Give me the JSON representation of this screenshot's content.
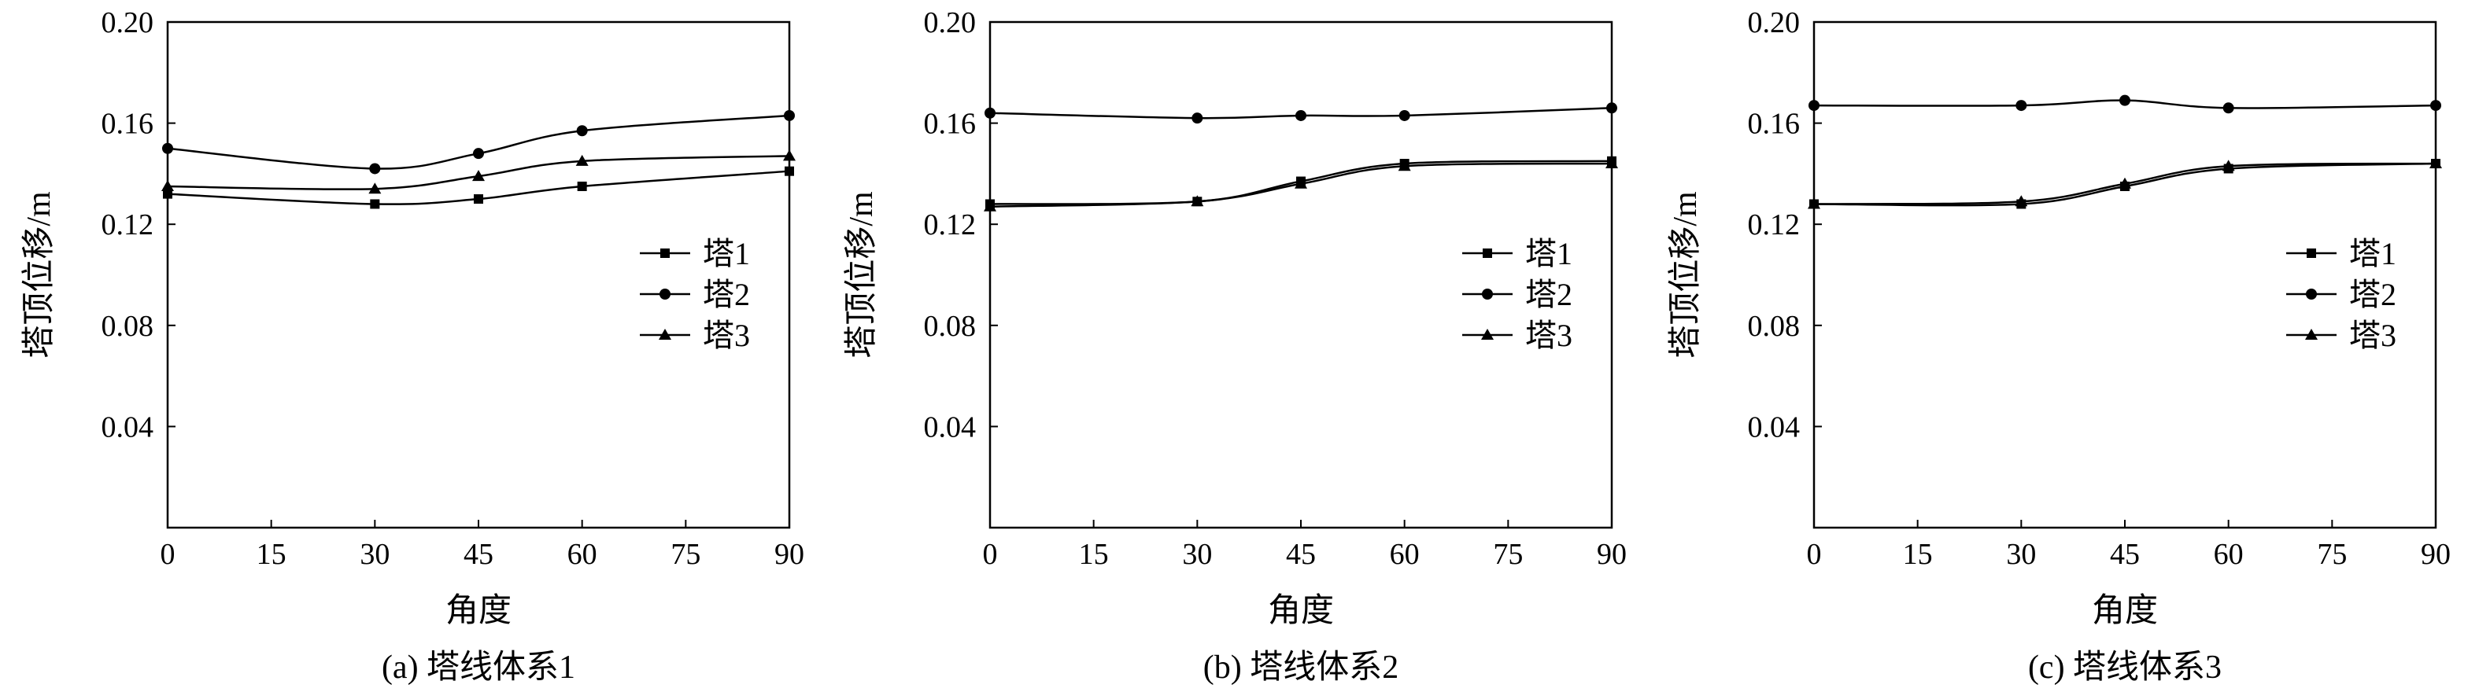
{
  "chart_data": [
    {
      "type": "line",
      "caption": "(a) 塔线体系1",
      "xlabel": "角度",
      "ylabel": "塔顶位移/m",
      "xlim": [
        0,
        90
      ],
      "ylim": [
        0,
        0.2
      ],
      "xticks": [
        "0",
        "15",
        "30",
        "45",
        "60",
        "75",
        "90"
      ],
      "yticks": [
        "0.04",
        "0.08",
        "0.12",
        "0.16",
        "0.20"
      ],
      "legend": "right",
      "x": [
        0,
        30,
        45,
        60,
        90
      ],
      "series": [
        {
          "name": "塔1",
          "marker": "square",
          "values": [
            0.132,
            0.128,
            0.13,
            0.135,
            0.141
          ]
        },
        {
          "name": "塔2",
          "marker": "circle",
          "values": [
            0.15,
            0.142,
            0.148,
            0.157,
            0.163
          ]
        },
        {
          "name": "塔3",
          "marker": "triangle",
          "values": [
            0.135,
            0.134,
            0.139,
            0.145,
            0.147
          ]
        }
      ]
    },
    {
      "type": "line",
      "caption": "(b) 塔线体系2",
      "xlabel": "角度",
      "ylabel": "塔顶位移/m",
      "xlim": [
        0,
        90
      ],
      "ylim": [
        0,
        0.2
      ],
      "xticks": [
        "0",
        "15",
        "30",
        "45",
        "60",
        "75",
        "90"
      ],
      "yticks": [
        "0.04",
        "0.08",
        "0.12",
        "0.16",
        "0.20"
      ],
      "legend": "right",
      "x": [
        0,
        30,
        45,
        60,
        90
      ],
      "series": [
        {
          "name": "塔1",
          "marker": "square",
          "values": [
            0.128,
            0.129,
            0.137,
            0.144,
            0.145
          ]
        },
        {
          "name": "塔2",
          "marker": "circle",
          "values": [
            0.164,
            0.162,
            0.163,
            0.163,
            0.166
          ]
        },
        {
          "name": "塔3",
          "marker": "triangle",
          "values": [
            0.127,
            0.129,
            0.136,
            0.143,
            0.144
          ]
        }
      ]
    },
    {
      "type": "line",
      "caption": "(c) 塔线体系3",
      "xlabel": "角度",
      "ylabel": "塔顶位移/m",
      "xlim": [
        0,
        90
      ],
      "ylim": [
        0,
        0.2
      ],
      "xticks": [
        "0",
        "15",
        "30",
        "45",
        "60",
        "75",
        "90"
      ],
      "yticks": [
        "0.04",
        "0.08",
        "0.12",
        "0.16",
        "0.20"
      ],
      "legend": "right",
      "x": [
        0,
        30,
        45,
        60,
        90
      ],
      "series": [
        {
          "name": "塔1",
          "marker": "square",
          "values": [
            0.128,
            0.128,
            0.135,
            0.142,
            0.144
          ]
        },
        {
          "name": "塔2",
          "marker": "circle",
          "values": [
            0.167,
            0.167,
            0.169,
            0.166,
            0.167
          ]
        },
        {
          "name": "塔3",
          "marker": "triangle",
          "values": [
            0.128,
            0.129,
            0.136,
            0.143,
            0.144
          ]
        }
      ]
    }
  ]
}
